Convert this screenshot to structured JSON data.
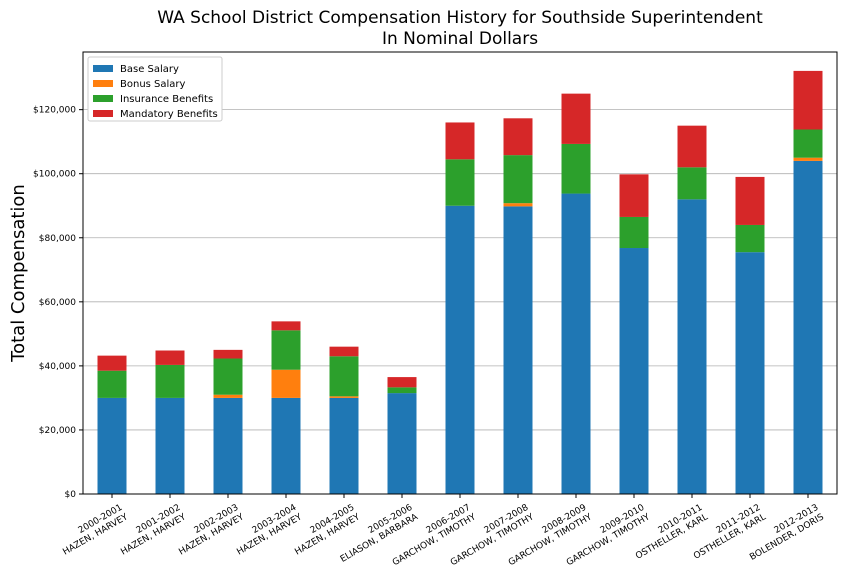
{
  "chart_data": {
    "type": "bar",
    "stacked": true,
    "title": "WA School District Compensation History for Southside Superintendent",
    "subtitle": "In Nominal Dollars",
    "xlabel": "",
    "ylabel": "Total Compensation",
    "ylim": [
      0,
      138000
    ],
    "yticks": [
      0,
      20000,
      40000,
      60000,
      80000,
      100000,
      120000
    ],
    "ytick_labels": [
      "$0",
      "$20,000",
      "$40,000",
      "$60,000",
      "$80,000",
      "$100,000",
      "$120,000"
    ],
    "grid": "horizontal",
    "legend_position": "top-left",
    "categories": [
      [
        "2000-2001",
        "HAZEN, HARVEY"
      ],
      [
        "2001-2002",
        "HAZEN, HARVEY"
      ],
      [
        "2002-2003",
        "HAZEN, HARVEY"
      ],
      [
        "2003-2004",
        "HAZEN, HARVEY"
      ],
      [
        "2004-2005",
        "HAZEN, HARVEY"
      ],
      [
        "2005-2006",
        "ELIASON, BARBARA"
      ],
      [
        "2006-2007",
        "GARCHOW, TIMOTHY"
      ],
      [
        "2007-2008",
        "GARCHOW, TIMOTHY"
      ],
      [
        "2008-2009",
        "GARCHOW, TIMOTHY"
      ],
      [
        "2009-2010",
        "GARCHOW, TIMOTHY"
      ],
      [
        "2010-2011",
        "OSTHELLER, KARL"
      ],
      [
        "2011-2012",
        "OSTHELLER, KARL"
      ],
      [
        "2012-2013",
        "BOLENDER, DORIS"
      ]
    ],
    "series": [
      {
        "name": "Base Salary",
        "color": "#1f77b4",
        "values": [
          30000,
          30000,
          30000,
          30000,
          30000,
          31500,
          90000,
          89800,
          93800,
          76800,
          92000,
          75500,
          104000
        ]
      },
      {
        "name": "Bonus Salary",
        "color": "#ff7f0e",
        "values": [
          0,
          0,
          1000,
          8800,
          500,
          0,
          0,
          1000,
          0,
          0,
          0,
          0,
          1000
        ]
      },
      {
        "name": "Insurance Benefits",
        "color": "#2ca02c",
        "values": [
          8500,
          10300,
          11300,
          12300,
          12500,
          1800,
          14500,
          15000,
          15500,
          9700,
          10000,
          8500,
          8800
        ]
      },
      {
        "name": "Mandatory Benefits",
        "color": "#d62728",
        "values": [
          4700,
          4500,
          2700,
          2800,
          3000,
          3200,
          11500,
          11500,
          15700,
          13300,
          13000,
          15000,
          18300
        ]
      }
    ]
  }
}
